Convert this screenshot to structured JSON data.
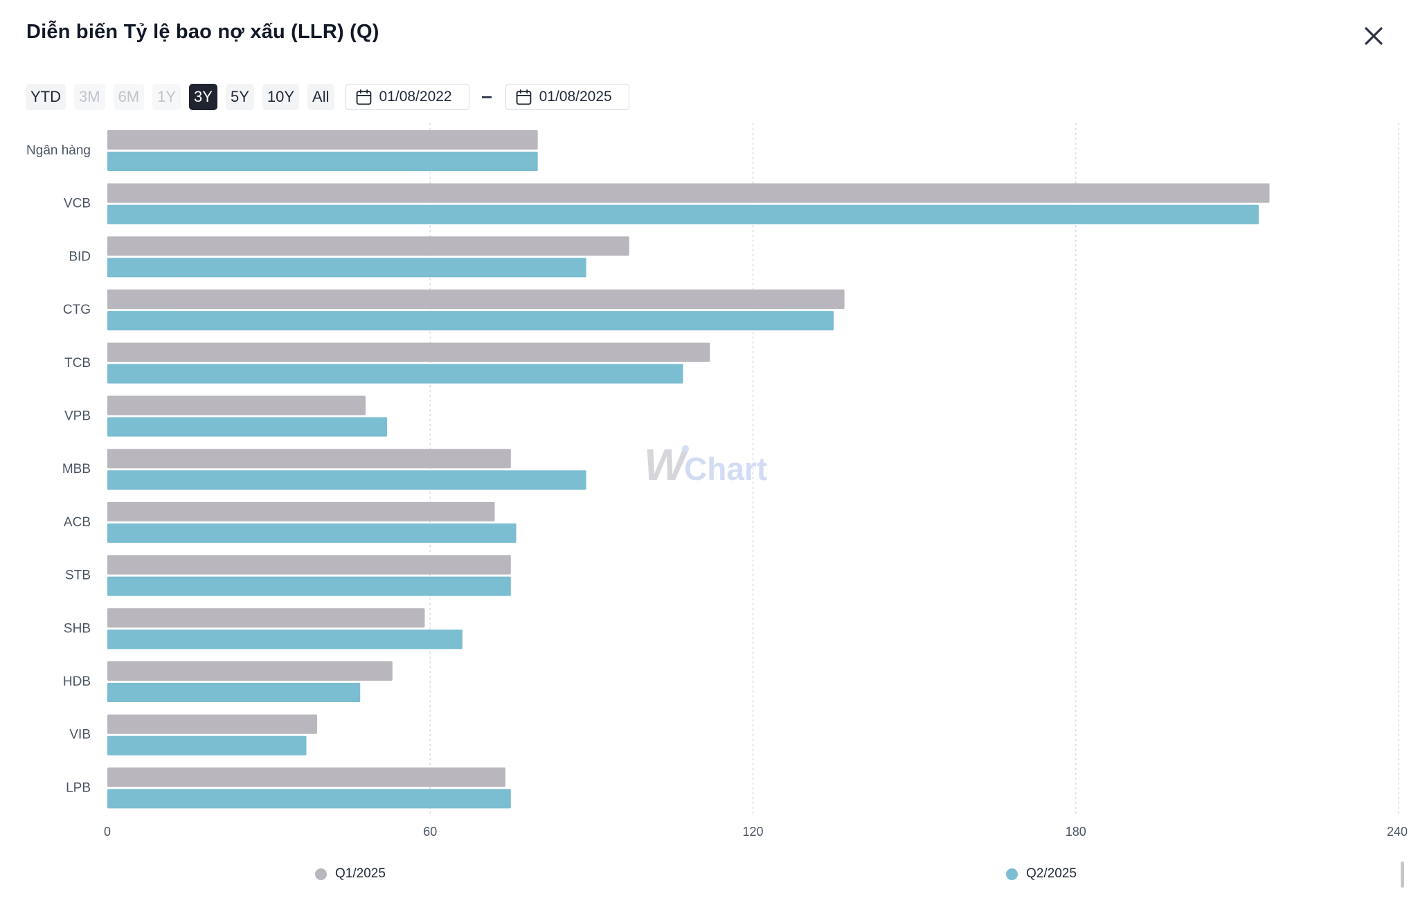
{
  "header": {
    "title": "Diễn biến Tỷ lệ bao nợ xấu (LLR) (Q)",
    "close_icon": "close-icon"
  },
  "toolbar": {
    "ranges": [
      {
        "label": "YTD",
        "state": "normal"
      },
      {
        "label": "3M",
        "state": "disabled"
      },
      {
        "label": "6M",
        "state": "disabled"
      },
      {
        "label": "1Y",
        "state": "disabled"
      },
      {
        "label": "3Y",
        "state": "active"
      },
      {
        "label": "5Y",
        "state": "normal"
      },
      {
        "label": "10Y",
        "state": "normal"
      },
      {
        "label": "All",
        "state": "normal"
      }
    ],
    "date_from": "01/08/2022",
    "date_to": "01/08/2025",
    "calendar_icon": "calendar-icon"
  },
  "watermark": {
    "prefix": "W",
    "suffix": "Chart"
  },
  "colors": {
    "q1": "#b9b7bd",
    "q2": "#7bbdd1",
    "grid": "#d9dce1",
    "axis_text": "#4b5563"
  },
  "chart_data": {
    "type": "bar",
    "orientation": "horizontal",
    "title": "Diễn biến Tỷ lệ bao nợ xấu (LLR) (Q)",
    "categories": [
      "Ngân hàng",
      "VCB",
      "BID",
      "CTG",
      "TCB",
      "VPB",
      "MBB",
      "ACB",
      "STB",
      "SHB",
      "HDB",
      "VIB",
      "LPB"
    ],
    "series": [
      {
        "name": "Q1/2025",
        "values": [
          80,
          216,
          97,
          137,
          112,
          48,
          75,
          72,
          75,
          59,
          53,
          39,
          74
        ]
      },
      {
        "name": "Q2/2025",
        "values": [
          80,
          214,
          89,
          135,
          107,
          52,
          89,
          76,
          75,
          66,
          47,
          37,
          75
        ]
      }
    ],
    "xlim": [
      0,
      240
    ],
    "xticks": [
      0,
      60,
      120,
      180,
      240
    ],
    "grid": true,
    "legend_position": "bottom"
  }
}
